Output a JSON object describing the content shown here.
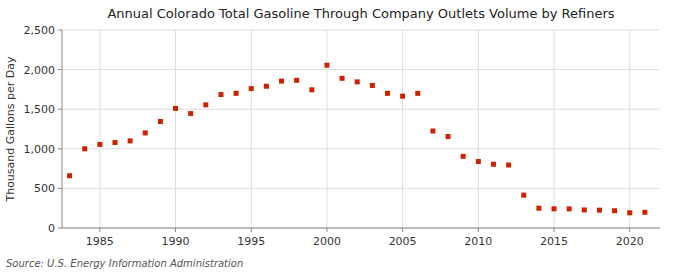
{
  "chart_data": {
    "type": "scatter",
    "title": "Annual Colorado Total Gasoline Through Company Outlets Volume by Refiners",
    "ylabel": "Thousand Gallons per Day",
    "source": "Source: U.S. Energy Information Administration",
    "color": "#cc2200",
    "marker": "square",
    "grid": true,
    "xlim": [
      1982.5,
      2022
    ],
    "ylim": [
      0,
      2500
    ],
    "xticks": [
      1985,
      1990,
      1995,
      2000,
      2005,
      2010,
      2015,
      2020
    ],
    "yticks": [
      0,
      500,
      {
        "value": 1000,
        "label": "1,000"
      },
      {
        "value": 1500,
        "label": "1,500"
      },
      {
        "value": 2000,
        "label": "2,000"
      },
      {
        "value": 2500,
        "label": "2,500"
      }
    ],
    "x": [
      1983,
      1984,
      1985,
      1986,
      1987,
      1988,
      1989,
      1990,
      1991,
      1992,
      1993,
      1994,
      1995,
      1996,
      1997,
      1998,
      1999,
      2000,
      2001,
      2002,
      2003,
      2004,
      2005,
      2006,
      2007,
      2008,
      2009,
      2010,
      2011,
      2012,
      2013,
      2014,
      2015,
      2016,
      2017,
      2018,
      2019,
      2020,
      2021
    ],
    "values": [
      660,
      1000,
      1055,
      1080,
      1100,
      1200,
      1345,
      1510,
      1445,
      1555,
      1685,
      1700,
      1760,
      1790,
      1855,
      1865,
      1745,
      2055,
      1890,
      1845,
      1800,
      1700,
      1665,
      1700,
      1225,
      1155,
      905,
      840,
      805,
      795,
      415,
      250,
      242,
      242,
      228,
      225,
      218,
      192,
      198
    ]
  }
}
